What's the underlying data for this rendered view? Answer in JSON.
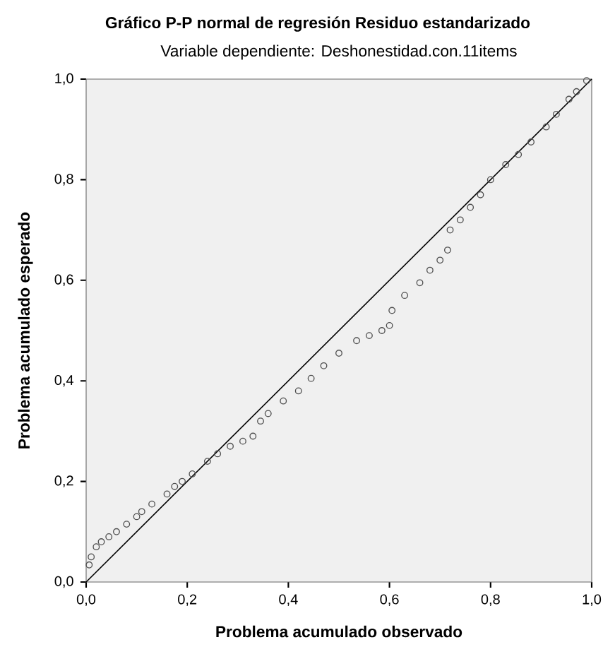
{
  "chart_data": {
    "type": "scatter",
    "title": "Gráfico P-P normal de regresión Residuo estandarizado",
    "subtitle": "Variable dependiente: Deshonestidad.con.11items",
    "xlabel": "Problema acumulado observado",
    "ylabel": "Problema acumulado esperado",
    "xlim": [
      0,
      1
    ],
    "ylim": [
      0,
      1
    ],
    "xticks": [
      {
        "value": 0,
        "label": "0,0"
      },
      {
        "value": 0.2,
        "label": "0,2"
      },
      {
        "value": 0.4,
        "label": "0,4"
      },
      {
        "value": 0.6,
        "label": "0,6"
      },
      {
        "value": 0.8,
        "label": "0,8"
      },
      {
        "value": 1,
        "label": "1,0"
      }
    ],
    "yticks": [
      {
        "value": 0,
        "label": "0,0"
      },
      {
        "value": 0.2,
        "label": "0,2"
      },
      {
        "value": 0.4,
        "label": "0,4"
      },
      {
        "value": 0.6,
        "label": "0,6"
      },
      {
        "value": 0.8,
        "label": "0,8"
      },
      {
        "value": 1,
        "label": "1,0"
      }
    ],
    "grid": false,
    "marker": "circle",
    "series": [
      {
        "color": "#505050",
        "x": [
          0.006,
          0.01,
          0.02,
          0.03,
          0.045,
          0.06,
          0.08,
          0.1,
          0.11,
          0.13,
          0.16,
          0.175,
          0.19,
          0.21,
          0.24,
          0.26,
          0.285,
          0.31,
          0.33,
          0.345,
          0.36,
          0.39,
          0.42,
          0.445,
          0.47,
          0.5,
          0.535,
          0.56,
          0.585,
          0.6,
          0.605,
          0.63,
          0.66,
          0.68,
          0.7,
          0.715,
          0.72,
          0.74,
          0.76,
          0.78,
          0.8,
          0.83,
          0.855,
          0.88,
          0.91,
          0.93,
          0.955,
          0.97,
          0.99
        ],
        "values": [
          0.034,
          0.05,
          0.07,
          0.08,
          0.09,
          0.1,
          0.115,
          0.13,
          0.14,
          0.155,
          0.175,
          0.19,
          0.2,
          0.215,
          0.24,
          0.255,
          0.27,
          0.28,
          0.29,
          0.32,
          0.335,
          0.36,
          0.38,
          0.405,
          0.43,
          0.455,
          0.48,
          0.49,
          0.5,
          0.51,
          0.54,
          0.57,
          0.595,
          0.62,
          0.64,
          0.66,
          0.7,
          0.72,
          0.745,
          0.77,
          0.8,
          0.83,
          0.85,
          0.875,
          0.905,
          0.93,
          0.96,
          0.975,
          0.997
        ]
      },
      {
        "type": "line",
        "color": "#000000",
        "x": [
          0,
          1
        ],
        "values": [
          0,
          1
        ],
        "marker": "none"
      }
    ]
  }
}
